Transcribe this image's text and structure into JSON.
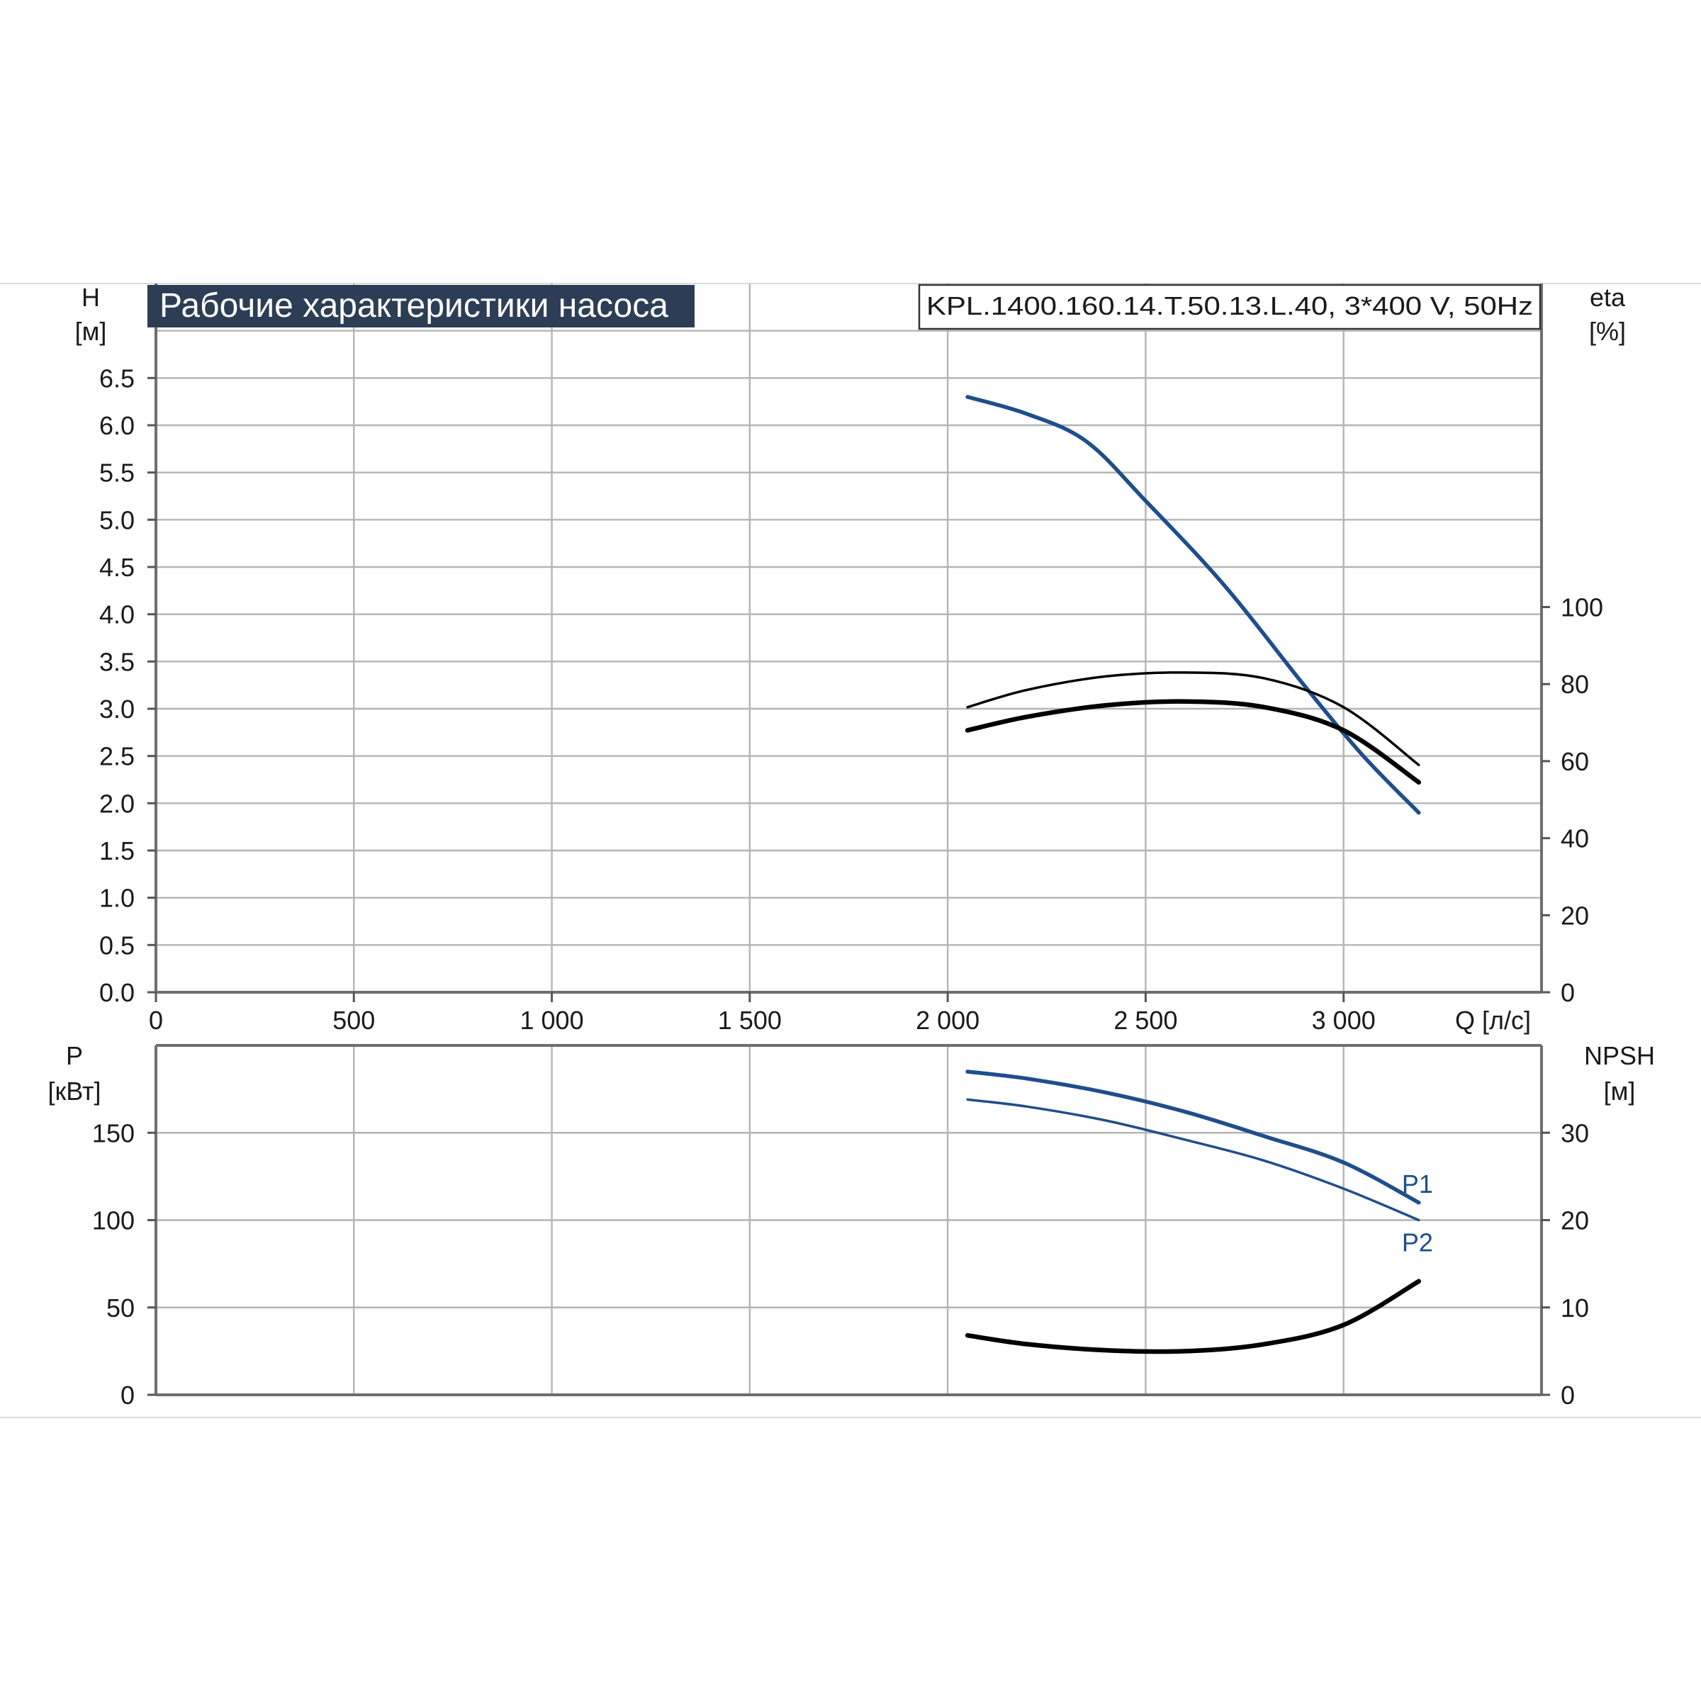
{
  "chart_data": [
    {
      "type": "line",
      "title": "Рабочие характеристики насоса",
      "model_label": "KPL.1400.160.14.T.50.13.L.40, 3*400 V, 50Hz",
      "xlabel": "Q [л/с]",
      "ylabel_left": {
        "name": "H",
        "unit": "[м]"
      },
      "ylabel_right": {
        "name": "eta",
        "unit": "[%]"
      },
      "xlim": [
        0,
        3500
      ],
      "ylim_left": [
        0,
        7.5
      ],
      "ylim_right": [
        0,
        184
      ],
      "x_ticks": [
        "0",
        "500",
        "1 000",
        "1 500",
        "2 000",
        "2 500",
        "3 000"
      ],
      "y_left_ticks": [
        "0.0",
        "0.5",
        "1.0",
        "1.5",
        "2.0",
        "2.5",
        "3.0",
        "3.5",
        "4.0",
        "4.5",
        "5.0",
        "5.5",
        "6.0",
        "6.5"
      ],
      "y_right_ticks": [
        "0",
        "20",
        "40",
        "60",
        "80",
        "100"
      ],
      "grid": true,
      "series": [
        {
          "axis": "left",
          "color": "#1f4e8c",
          "points": [
            [
              2050,
              6.3
            ],
            [
              2200,
              6.12
            ],
            [
              2350,
              5.83
            ],
            [
              2500,
              5.2
            ],
            [
              2700,
              4.3
            ],
            [
              2900,
              3.25
            ],
            [
              3050,
              2.5
            ],
            [
              3190,
              1.9
            ]
          ]
        },
        {
          "axis": "right",
          "color": "#000000",
          "points": [
            [
              2050,
              74
            ],
            [
              2200,
              78.5
            ],
            [
              2400,
              82
            ],
            [
              2600,
              83
            ],
            [
              2800,
              81.5
            ],
            [
              3000,
              74
            ],
            [
              3190,
              59
            ]
          ]
        },
        {
          "axis": "right",
          "color": "#000000",
          "points": [
            [
              2050,
              68
            ],
            [
              2200,
              71.5
            ],
            [
              2400,
              74.5
            ],
            [
              2600,
              75.5
            ],
            [
              2800,
              74
            ],
            [
              3000,
              68
            ],
            [
              3190,
              54.5
            ]
          ]
        }
      ]
    },
    {
      "type": "line",
      "ylabel_left": {
        "name": "P",
        "unit": "[кВт]"
      },
      "ylabel_right": {
        "name": "NPSH",
        "unit": "[м]"
      },
      "xlim": [
        0,
        3500
      ],
      "ylim_left": [
        0,
        200
      ],
      "ylim_right": [
        0,
        40
      ],
      "y_left_ticks": [
        "0",
        "50",
        "100",
        "150"
      ],
      "y_right_ticks": [
        "0",
        "10",
        "20",
        "30"
      ],
      "grid": true,
      "series": [
        {
          "name": "P1",
          "axis": "left",
          "color": "#1f4e8c",
          "points": [
            [
              2050,
              185
            ],
            [
              2200,
              181
            ],
            [
              2400,
              173
            ],
            [
              2600,
              162
            ],
            [
              2800,
              148
            ],
            [
              3000,
              133
            ],
            [
              3190,
              110
            ]
          ]
        },
        {
          "name": "P2",
          "axis": "left",
          "color": "#1f4e8c",
          "points": [
            [
              2050,
              169
            ],
            [
              2200,
              165
            ],
            [
              2400,
              157
            ],
            [
              2600,
              146
            ],
            [
              2800,
              134
            ],
            [
              3000,
              118
            ],
            [
              3190,
              100
            ]
          ]
        },
        {
          "axis": "right",
          "color": "#000000",
          "points": [
            [
              2050,
              6.8
            ],
            [
              2200,
              5.8
            ],
            [
              2400,
              5.1
            ],
            [
              2600,
              5.0
            ],
            [
              2800,
              5.8
            ],
            [
              3000,
              8.0
            ],
            [
              3190,
              13.0
            ]
          ]
        }
      ]
    }
  ]
}
